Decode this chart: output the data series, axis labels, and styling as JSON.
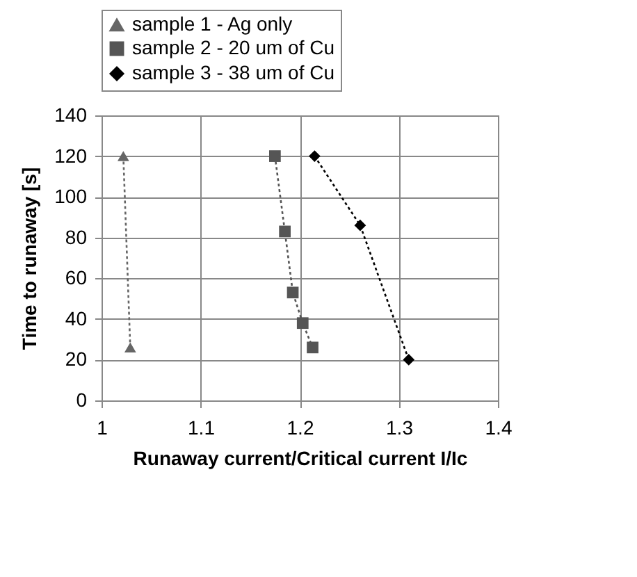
{
  "chart_data": {
    "type": "line",
    "xlabel": "Runaway current/Critical current I/Ic",
    "ylabel": "Time to runaway [s]",
    "xlim": [
      1,
      1.4
    ],
    "xticks": [
      1,
      1.1,
      1.2,
      1.3,
      1.4
    ],
    "ylim": [
      0,
      140
    ],
    "yticks": [
      0,
      20,
      40,
      60,
      80,
      100,
      120,
      140
    ],
    "grid": true,
    "legend": "top",
    "line_style": "dotted",
    "series": [
      {
        "name": "sample 1 - Ag only",
        "color": "#666666",
        "marker": "triangle",
        "x": [
          1.022,
          1.029
        ],
        "values": [
          120,
          26
        ]
      },
      {
        "name": "sample 2 - 20 um of Cu",
        "color": "#555555",
        "marker": "square",
        "x": [
          1.175,
          1.185,
          1.193,
          1.203,
          1.213
        ],
        "values": [
          120,
          83,
          53,
          38,
          26
        ]
      },
      {
        "name": "sample 3 - 38 um of Cu",
        "color": "#000000",
        "marker": "diamond",
        "x": [
          1.215,
          1.261,
          1.31
        ],
        "values": [
          120,
          86,
          20
        ]
      }
    ]
  }
}
